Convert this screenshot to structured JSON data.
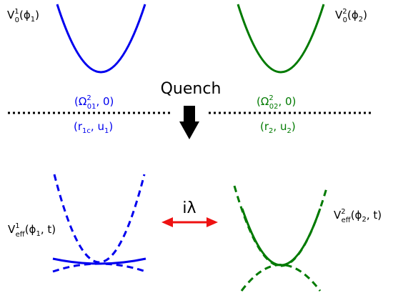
{
  "colors": {
    "blue": "#0000ee",
    "green": "#007a00",
    "arrow": "#ee1111",
    "black": "#000000"
  },
  "quench": "Quench",
  "coupling": "iλ",
  "labels": {
    "v1_main": "V",
    "v1_sub": "0",
    "v1_sup": "1",
    "v1_arg": "(ϕ",
    "v1_argsub": "1",
    "v1_close": ")",
    "v2_main": "V",
    "v2_sub": "0",
    "v2_sup": "2",
    "v2_arg": "(ϕ",
    "v2_argsub": "2",
    "v2_close": ")",
    "w1_open": "(Ω",
    "w1_sup": "2",
    "w1_sub": "01",
    "w1_close": ", 0)",
    "w2_open": "(Ω",
    "w2_sup": "2",
    "w2_sub": "02",
    "w2_close": ", 0)",
    "ru1_open": "(r",
    "ru1_sub1": "1c",
    "ru1_mid": ", u",
    "ru1_sub2": "1",
    "ru1_close": ")",
    "ru2_open": "(r",
    "ru2_sub1": "2",
    "ru2_mid": ", u",
    "ru2_sub2": "2",
    "ru2_close": ")",
    "ve1_main": "V",
    "ve1_sub": "eff",
    "ve1_sup": "1",
    "ve1_arg": "(ϕ",
    "ve1_argsub": "1",
    "ve1_close": ", t)",
    "ve2_main": "V",
    "ve2_sub": "eff",
    "ve2_sup": "2",
    "ve2_arg": "(ϕ",
    "ve2_argsub": "2",
    "ve2_close": ", t)"
  }
}
